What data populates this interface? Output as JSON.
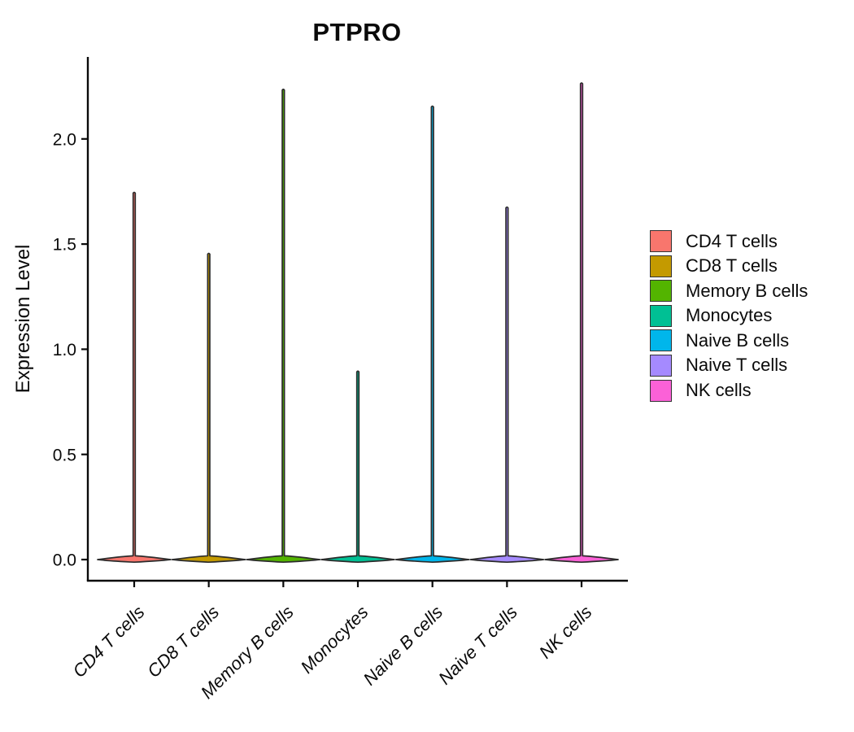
{
  "chart_data": {
    "type": "violin",
    "title": "PTPRO",
    "ylabel": "Expression Level",
    "xlabel": "",
    "ylim": [
      -0.1,
      2.39
    ],
    "ytick_labels": [
      "0.0",
      "0.5",
      "1.0",
      "1.5",
      "2.0"
    ],
    "ytick_values": [
      0.0,
      0.5,
      1.0,
      1.5,
      2.0
    ],
    "grid": false,
    "legend_position": "right",
    "background": "#ffffff",
    "axis_color": "#0a0a0a",
    "violin_outline_color": "#2b2b2b",
    "categories": [
      "CD4 T cells",
      "CD8 T cells",
      "Memory B cells",
      "Monocytes",
      "Naive B cells",
      "Naive T cells",
      "NK cells"
    ],
    "violins": [
      {
        "label": "CD4 T cells",
        "color": "#F8766D",
        "max_expression": 1.75,
        "density_peak_at": 0.0
      },
      {
        "label": "CD8 T cells",
        "color": "#C49A00",
        "max_expression": 1.46,
        "density_peak_at": 0.0
      },
      {
        "label": "Memory B cells",
        "color": "#53B400",
        "max_expression": 2.24,
        "density_peak_at": 0.0
      },
      {
        "label": "Monocytes",
        "color": "#00C094",
        "max_expression": 0.9,
        "density_peak_at": 0.0
      },
      {
        "label": "Naive B cells",
        "color": "#00B6EB",
        "max_expression": 2.16,
        "density_peak_at": 0.0
      },
      {
        "label": "Naive T cells",
        "color": "#A58AFF",
        "max_expression": 1.68,
        "density_peak_at": 0.0
      },
      {
        "label": "NK cells",
        "color": "#FB61D7",
        "max_expression": 2.27,
        "density_peak_at": 0.0
      }
    ],
    "legend_entries": [
      "CD4 T cells",
      "CD8 T cells",
      "Memory B cells",
      "Monocytes",
      "Naive B cells",
      "Naive T cells",
      "NK cells"
    ]
  }
}
